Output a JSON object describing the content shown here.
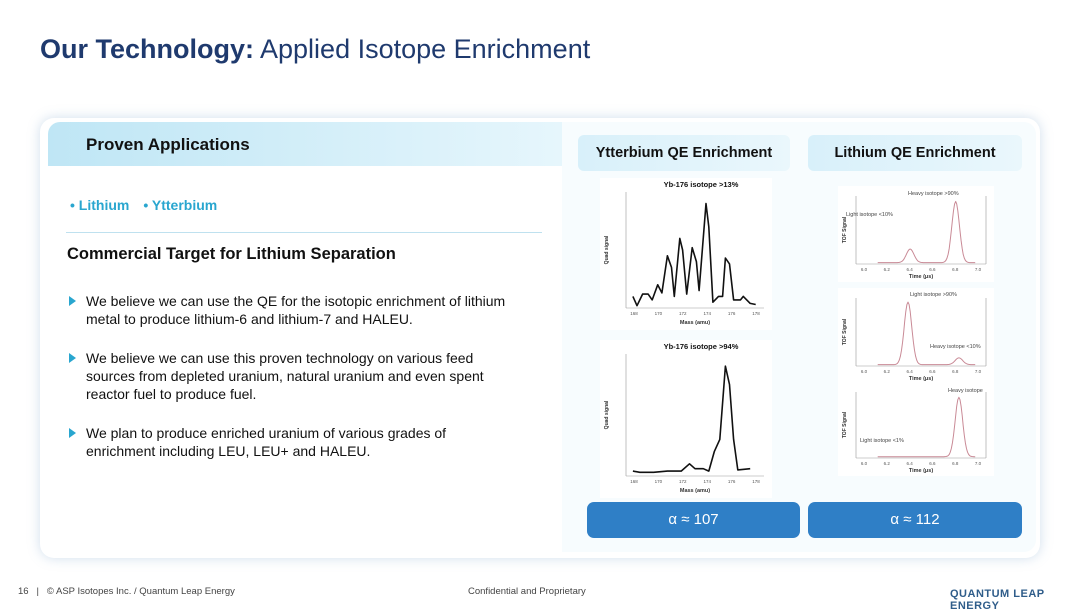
{
  "title": {
    "bold": "Our Technology:",
    "rest": " Applied Isotope Enrichment"
  },
  "left": {
    "header": "Proven Applications",
    "tags": [
      "• Lithium",
      "• Ytterbium"
    ],
    "subheading": "Commercial Target for Lithium Separation",
    "bullets": [
      "We believe we can use the QE for the isotopic enrichment of lithium metal to produce lithium-6 and lithium-7 and HALEU.",
      "We believe we can use this proven technology on various feed sources from depleted uranium, natural uranium and even spent reactor fuel to produce fuel.",
      "We plan to produce enriched uranium of various grades of enrichment including LEU, LEU+ and HALEU."
    ]
  },
  "columns": [
    {
      "title": "Ytterbium QE Enrichment",
      "alpha": "α ≈ 107"
    },
    {
      "title": "Lithium QE Enrichment",
      "alpha": "α ≈ 112"
    }
  ],
  "chart_data": [
    {
      "type": "line",
      "title": "Yb-176 isotope >13%",
      "xlabel": "Mass (amu)",
      "ylabel": "Quad signal",
      "xlim": [
        168,
        178
      ],
      "ylim": [
        0,
        1
      ],
      "xticks": [
        "168",
        "170",
        "172",
        "174",
        "176",
        "178"
      ],
      "points": [
        [
          168.5,
          0.1
        ],
        [
          168.8,
          0.02
        ],
        [
          169.2,
          0.12
        ],
        [
          169.6,
          0.12
        ],
        [
          169.9,
          0.07
        ],
        [
          170.3,
          0.2
        ],
        [
          170.6,
          0.13
        ],
        [
          171,
          0.45
        ],
        [
          171.3,
          0.35
        ],
        [
          171.5,
          0.1
        ],
        [
          171.9,
          0.6
        ],
        [
          172.1,
          0.5
        ],
        [
          172.4,
          0.12
        ],
        [
          172.8,
          0.52
        ],
        [
          173.1,
          0.4
        ],
        [
          173.3,
          0.15
        ],
        [
          173.8,
          0.9
        ],
        [
          174,
          0.7
        ],
        [
          174.3,
          0.05
        ],
        [
          174.7,
          0.1
        ],
        [
          175,
          0.1
        ],
        [
          175.2,
          0.43
        ],
        [
          175.5,
          0.38
        ],
        [
          175.8,
          0.07
        ],
        [
          176.3,
          0.07
        ],
        [
          176.5,
          0.1
        ],
        [
          177,
          0.04
        ],
        [
          177.4,
          0.03
        ]
      ]
    },
    {
      "type": "line",
      "title": "Yb-176 isotope >94%",
      "xlabel": "Mass (amu)",
      "ylabel": "Quad signal",
      "xlim": [
        168,
        178
      ],
      "ylim": [
        0,
        1
      ],
      "xticks": [
        "168",
        "170",
        "172",
        "174",
        "176",
        "178"
      ],
      "points": [
        [
          168.5,
          0.04
        ],
        [
          169,
          0.03
        ],
        [
          170,
          0.03
        ],
        [
          171,
          0.04
        ],
        [
          172,
          0.04
        ],
        [
          172.6,
          0.1
        ],
        [
          173,
          0.06
        ],
        [
          173.6,
          0.06
        ],
        [
          174,
          0.04
        ],
        [
          174.4,
          0.2
        ],
        [
          174.8,
          0.3
        ],
        [
          175.2,
          0.9
        ],
        [
          175.5,
          0.75
        ],
        [
          175.8,
          0.3
        ],
        [
          176.1,
          0.05
        ],
        [
          177,
          0.06
        ]
      ]
    },
    {
      "type": "line",
      "xlabel": "Time (μs)",
      "ylabel": "TOF Signal",
      "xlim": [
        5.9,
        7.1
      ],
      "ylim": [
        0,
        1
      ],
      "xticks": [
        "6.0",
        "6.2",
        "6.4",
        "6.6",
        "6.8",
        "7.0"
      ],
      "annotations": [
        "Heavy isotope >90%",
        "Light isotope <10%"
      ],
      "peaks": [
        [
          6.4,
          0.2
        ],
        [
          6.82,
          0.9
        ]
      ]
    },
    {
      "type": "line",
      "xlabel": "Time (μs)",
      "ylabel": "TOF Signal",
      "xlim": [
        5.9,
        7.1
      ],
      "ylim": [
        0,
        1
      ],
      "xticks": [
        "6.0",
        "6.2",
        "6.4",
        "6.6",
        "6.8",
        "7.0"
      ],
      "annotations": [
        "Light isotope >90%",
        "Heavy isotope <10%"
      ],
      "peaks": [
        [
          6.38,
          0.92
        ],
        [
          6.85,
          0.1
        ]
      ]
    },
    {
      "type": "line",
      "xlabel": "Time (μs)",
      "ylabel": "TOF Signal",
      "xlim": [
        5.9,
        7.1
      ],
      "ylim": [
        0,
        1
      ],
      "xticks": [
        "6.0",
        "6.2",
        "6.4",
        "6.6",
        "6.8",
        "7.0"
      ],
      "annotations": [
        "Heavy isotope",
        "Light isotope <1%"
      ],
      "peaks": [
        [
          6.85,
          0.9
        ]
      ]
    }
  ],
  "footer": {
    "page": "16",
    "separator": "|",
    "copyright": "© ASP Isotopes Inc. / Quantum Leap Energy",
    "confidential": "Confidential and Proprietary",
    "logo": "QUANTUM LEAP ENERGY"
  },
  "colors": {
    "navy": "#1f3a6e",
    "accent": "#29a6cf",
    "button": "#2f7fc6"
  }
}
